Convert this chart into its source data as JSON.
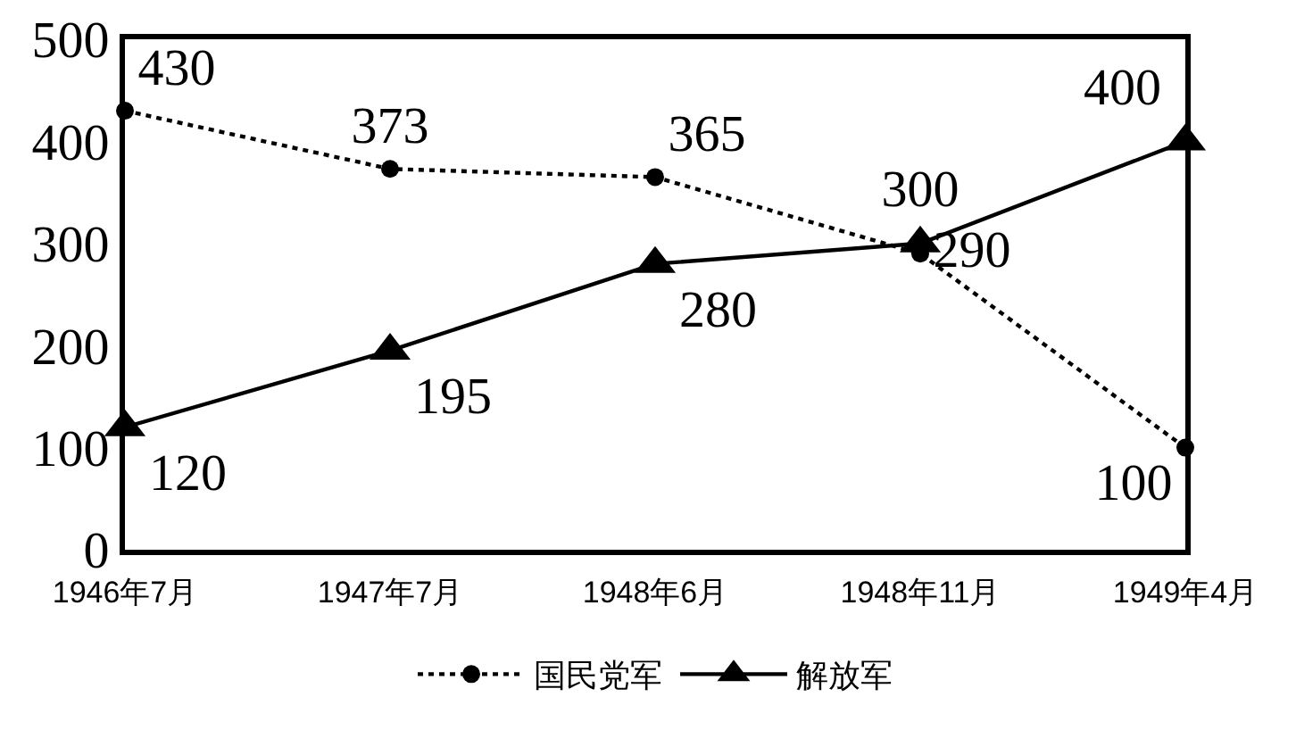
{
  "chart_data": {
    "type": "line",
    "categories": [
      "1946年7月",
      "1947年7月",
      "1948年6月",
      "1948年11月",
      "1949年4月"
    ],
    "series": [
      {
        "name": "国民党军",
        "color": "#000000",
        "values": [
          430,
          373,
          365,
          290,
          100
        ],
        "marker": "circle",
        "line_style": "dotted"
      },
      {
        "name": "解放军",
        "color": "#000000",
        "values": [
          120,
          195,
          280,
          300,
          400
        ],
        "marker": "triangle",
        "line_style": "solid"
      }
    ],
    "ylim": [
      0,
      500
    ],
    "yticks": [
      0,
      100,
      200,
      300,
      400,
      500
    ],
    "data_labels": true,
    "grid": false,
    "legend": "bottom"
  }
}
